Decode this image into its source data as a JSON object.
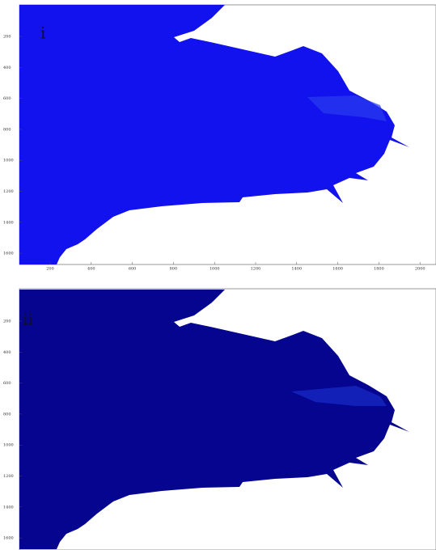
{
  "panels": [
    {
      "label": "i",
      "xticks": [
        200,
        400,
        600,
        800,
        1000,
        1200,
        1400,
        1600,
        1800,
        2000
      ],
      "yticks": [
        200,
        400,
        600,
        800,
        1000,
        1200,
        1400,
        1600
      ]
    },
    {
      "label": "ii",
      "yticks": [
        200,
        400,
        600,
        800,
        1000,
        1200,
        1400,
        1600
      ]
    }
  ]
}
